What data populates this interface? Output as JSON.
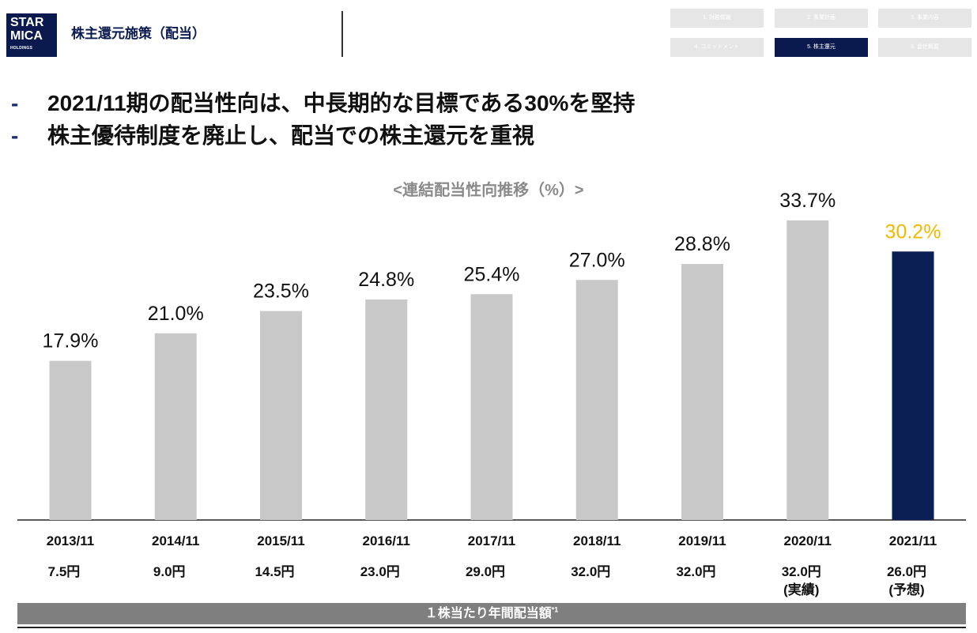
{
  "logo": {
    "line1": "STAR",
    "line2": "MICA",
    "line3": "HOLDINGS"
  },
  "header": {
    "title": "株主還元施策（配当）"
  },
  "nav": {
    "items": [
      {
        "label": "1. 財務情報"
      },
      {
        "label": "2. 事業計画"
      },
      {
        "label": "3. 事業内容"
      },
      {
        "label": "4. コミットメント"
      },
      {
        "label": "5. 株主還元"
      },
      {
        "label": "6. 会社概要"
      }
    ],
    "active_color": "#0b1a4e",
    "inactive_color": "#e6e6e6"
  },
  "bullets": [
    {
      "marker": "-",
      "text": "2021/11期の配当性向は、中長期的な目標である30%を堅持"
    },
    {
      "marker": "-",
      "text": "株主優待制度を廃止し、配当での株主還元を重視"
    }
  ],
  "chart_data": {
    "type": "bar",
    "title": "<連結配当性向推移（%）>",
    "xlabel": "",
    "ylabel": "",
    "categories": [
      "2013/11",
      "2014/11",
      "2015/11",
      "2016/11",
      "2017/11",
      "2018/11",
      "2019/11",
      "2020/11",
      "2021/11"
    ],
    "values": [
      17.9,
      21.0,
      23.5,
      24.8,
      25.4,
      27.0,
      28.8,
      33.7,
      30.2
    ],
    "value_suffix": "%",
    "colors": [
      "#c8c8c8",
      "#c8c8c8",
      "#c8c8c8",
      "#c8c8c8",
      "#c8c8c8",
      "#c8c8c8",
      "#c8c8c8",
      "#c8c8c8",
      "#0b1f55"
    ],
    "label_colors": [
      "#111111",
      "#111111",
      "#111111",
      "#111111",
      "#111111",
      "#111111",
      "#111111",
      "#111111",
      "#f5b800"
    ],
    "ylim": [
      0,
      40
    ],
    "grid": false,
    "legend": "none"
  },
  "dividends": {
    "cells": [
      {
        "amount": "7.5円"
      },
      {
        "amount": "9.0円"
      },
      {
        "amount": "14.5円"
      },
      {
        "amount": "23.0円"
      },
      {
        "amount": "29.0円"
      },
      {
        "amount": "32.0円"
      },
      {
        "amount": "32.0円"
      },
      {
        "amount": "32.0円",
        "note": "(実績)"
      },
      {
        "amount": "26.0円",
        "note": "(予想)"
      }
    ],
    "caption": "１株当たり年間配当額",
    "caption_note": "*1"
  }
}
